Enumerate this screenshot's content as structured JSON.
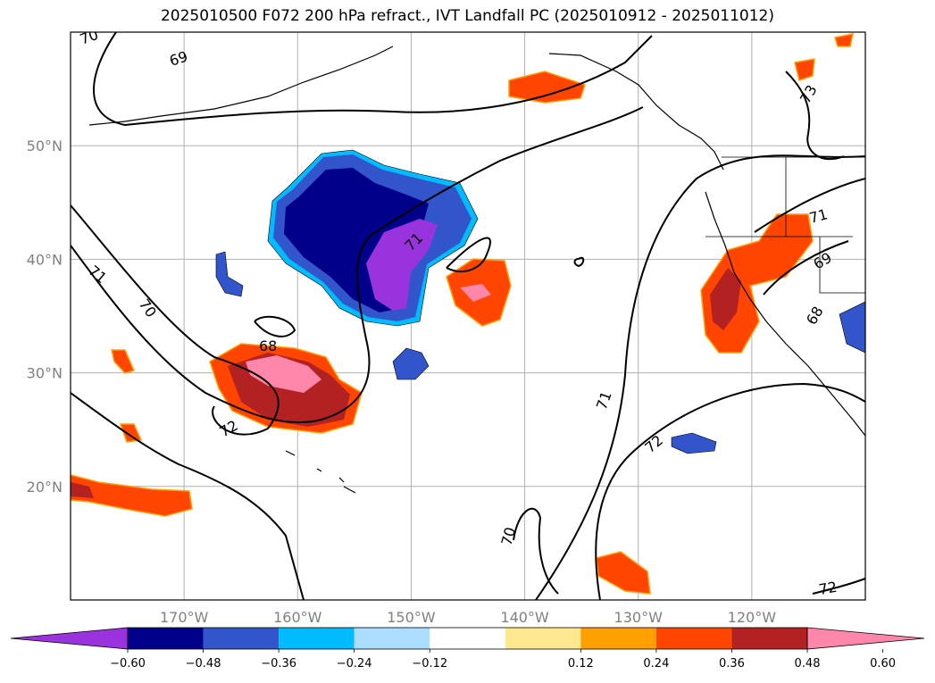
{
  "title": "2025010500 F072 200 hPa refract., IVT Landfall PC (2025010912 - 2025011012)",
  "map": {
    "lon_range": [
      -180,
      -110
    ],
    "lat_range": [
      10,
      60
    ],
    "lat_ticks": [
      {
        "lat": 20,
        "label": "20°N"
      },
      {
        "lat": 30,
        "label": "30°N"
      },
      {
        "lat": 40,
        "label": "40°N"
      },
      {
        "lat": 50,
        "label": "50°N"
      }
    ],
    "lon_ticks": [
      {
        "lon": -170,
        "label": "170°W"
      },
      {
        "lon": -160,
        "label": "160°W"
      },
      {
        "lon": -150,
        "label": "150°W"
      },
      {
        "lon": -140,
        "label": "140°W"
      },
      {
        "lon": -130,
        "label": "130°W"
      },
      {
        "lon": -120,
        "label": "120°W"
      }
    ],
    "gridlines": true,
    "contour_labels": [
      "70",
      "69",
      "73",
      "71",
      "70",
      "71",
      "68",
      "72",
      "71",
      "69",
      "68",
      "71",
      "72",
      "70",
      "72"
    ]
  },
  "colorbar": {
    "colors": [
      "#9933dd",
      "#00008b",
      "#3355cc",
      "#00bbff",
      "#aaddff",
      "#ffffff",
      "#ffe890",
      "#ffa000",
      "#ff4500",
      "#b22222",
      "#ff88aa"
    ],
    "ticks": [
      "−0.60",
      "−0.48",
      "−0.36",
      "−0.24",
      "−0.12",
      "0.12",
      "0.24",
      "0.36",
      "0.48",
      "0.60"
    ]
  }
}
